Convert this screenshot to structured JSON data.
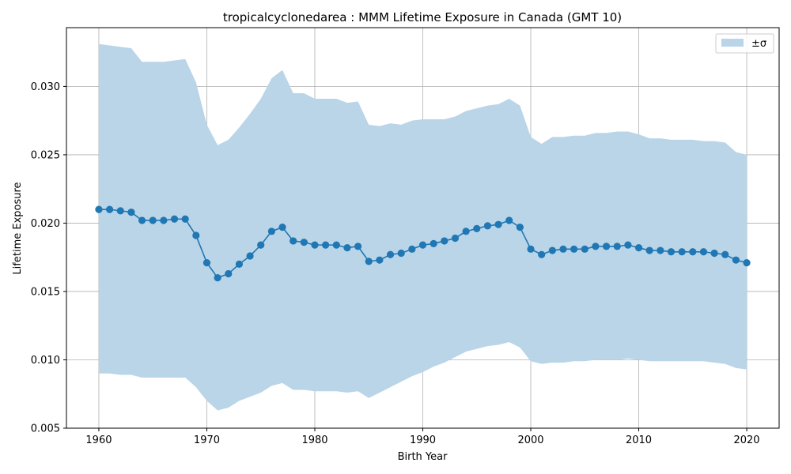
{
  "chart_data": {
    "type": "line",
    "title": "tropicalcyclonedarea : MMM Lifetime Exposure in Canada (GMT 10)",
    "xlabel": "Birth Year",
    "ylabel": "Lifetime Exposure",
    "xlim": [
      1957,
      2023
    ],
    "ylim": [
      0.005,
      0.0343
    ],
    "xticks": [
      1960,
      1970,
      1980,
      1990,
      2000,
      2010,
      2020
    ],
    "yticks": [
      0.005,
      0.01,
      0.015,
      0.02,
      0.025,
      0.03
    ],
    "ytick_labels": [
      "0.005",
      "0.010",
      "0.015",
      "0.020",
      "0.025",
      "0.030"
    ],
    "grid": true,
    "legend": {
      "position": "top-right",
      "entries": [
        {
          "label": "±σ",
          "kind": "band"
        }
      ]
    },
    "colors": {
      "line": "#1f77b4",
      "band": "#bad5e8",
      "grid": "#b0b0b0"
    },
    "x": [
      1960,
      1961,
      1962,
      1963,
      1964,
      1965,
      1966,
      1967,
      1968,
      1969,
      1970,
      1971,
      1972,
      1973,
      1974,
      1975,
      1976,
      1977,
      1978,
      1979,
      1980,
      1981,
      1982,
      1983,
      1984,
      1985,
      1986,
      1987,
      1988,
      1989,
      1990,
      1991,
      1992,
      1993,
      1994,
      1995,
      1996,
      1997,
      1998,
      1999,
      2000,
      2001,
      2002,
      2003,
      2004,
      2005,
      2006,
      2007,
      2008,
      2009,
      2010,
      2011,
      2012,
      2013,
      2014,
      2015,
      2016,
      2017,
      2018,
      2019,
      2020
    ],
    "series": [
      {
        "kind": "line",
        "values": [
          0.021,
          0.021,
          0.0209,
          0.0208,
          0.0202,
          0.0202,
          0.0202,
          0.0203,
          0.0203,
          0.0191,
          0.0171,
          0.016,
          0.0163,
          0.017,
          0.0176,
          0.0184,
          0.0194,
          0.0197,
          0.0187,
          0.0186,
          0.0184,
          0.0184,
          0.0184,
          0.0182,
          0.0183,
          0.0172,
          0.0173,
          0.0177,
          0.0178,
          0.0181,
          0.0184,
          0.0185,
          0.0187,
          0.0189,
          0.0194,
          0.0196,
          0.0198,
          0.0199,
          0.0202,
          0.0197,
          0.0181,
          0.0177,
          0.018,
          0.0181,
          0.0181,
          0.0181,
          0.0183,
          0.0183,
          0.0183,
          0.0184,
          0.0182,
          0.018,
          0.018,
          0.0179,
          0.0179,
          0.0179,
          0.0179,
          0.0178,
          0.0177,
          0.0173,
          0.0171
        ]
      },
      {
        "name": "±σ",
        "kind": "band",
        "upper": [
          0.0331,
          0.033,
          0.0329,
          0.0328,
          0.0318,
          0.0318,
          0.0318,
          0.0319,
          0.032,
          0.0303,
          0.0272,
          0.0257,
          0.0261,
          0.027,
          0.028,
          0.0291,
          0.0306,
          0.0312,
          0.0295,
          0.0295,
          0.0291,
          0.0291,
          0.0291,
          0.0288,
          0.0289,
          0.0272,
          0.0271,
          0.0273,
          0.0272,
          0.0275,
          0.0276,
          0.0276,
          0.0276,
          0.0278,
          0.0282,
          0.0284,
          0.0286,
          0.0287,
          0.0291,
          0.0286,
          0.0263,
          0.0258,
          0.0263,
          0.0263,
          0.0264,
          0.0264,
          0.0266,
          0.0266,
          0.0267,
          0.0267,
          0.0265,
          0.0262,
          0.0262,
          0.0261,
          0.0261,
          0.0261,
          0.026,
          0.026,
          0.0259,
          0.0252,
          0.025
        ],
        "lower": [
          0.009,
          0.009,
          0.0089,
          0.0089,
          0.0087,
          0.0087,
          0.0087,
          0.0087,
          0.0087,
          0.008,
          0.007,
          0.0063,
          0.0065,
          0.007,
          0.0073,
          0.0076,
          0.0081,
          0.0083,
          0.0078,
          0.0078,
          0.0077,
          0.0077,
          0.0077,
          0.0076,
          0.0077,
          0.0072,
          0.0076,
          0.008,
          0.0084,
          0.0088,
          0.0091,
          0.0095,
          0.0098,
          0.0102,
          0.0106,
          0.0108,
          0.011,
          0.0111,
          0.0113,
          0.0109,
          0.0099,
          0.0097,
          0.0098,
          0.0098,
          0.0099,
          0.0099,
          0.01,
          0.01,
          0.01,
          0.0101,
          0.01,
          0.0099,
          0.0099,
          0.0099,
          0.0099,
          0.0099,
          0.0099,
          0.0098,
          0.0097,
          0.0094,
          0.0093
        ]
      }
    ]
  }
}
